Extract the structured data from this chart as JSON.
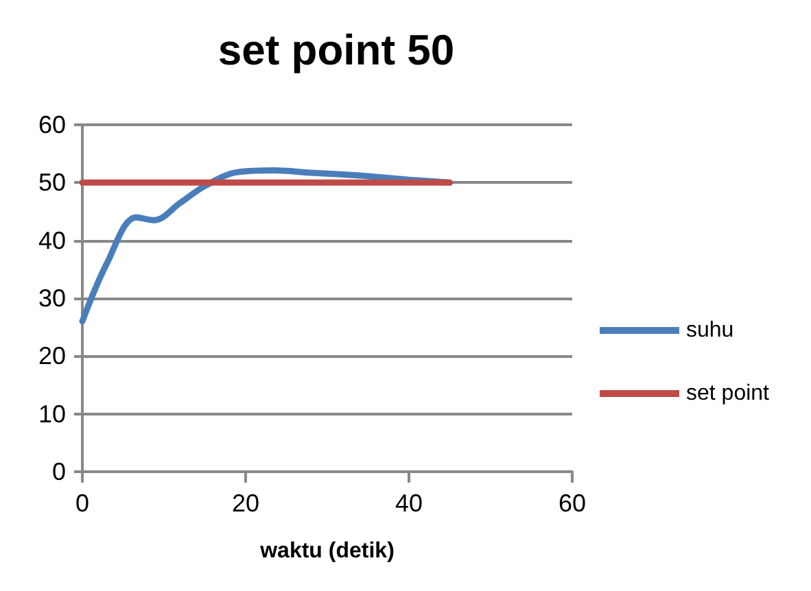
{
  "chart_data": {
    "type": "line",
    "title": "set point 50",
    "xlabel": "waktu (detik)",
    "xlim": [
      0,
      60
    ],
    "xticks": [
      0,
      20,
      40,
      60
    ],
    "ylim": [
      0,
      60
    ],
    "yticks": [
      0,
      10,
      20,
      30,
      40,
      50,
      60
    ],
    "grid": "y",
    "legend": "right",
    "marker": "none",
    "line_style": "solid",
    "series": [
      {
        "name": "suhu",
        "color": "#4a7ebb",
        "x": [
          0,
          3,
          6.6,
          8.8,
          12,
          15,
          19,
          23.5,
          28,
          32,
          36,
          40,
          45
        ],
        "values": [
          26,
          36,
          44,
          43.5,
          46.5,
          49.4,
          51.8,
          52.1,
          51.7,
          51.4,
          51,
          50.5,
          50
        ]
      },
      {
        "name": "set point",
        "color": "#be4b48",
        "x": [
          0,
          45
        ],
        "values": [
          50,
          50
        ]
      }
    ]
  }
}
